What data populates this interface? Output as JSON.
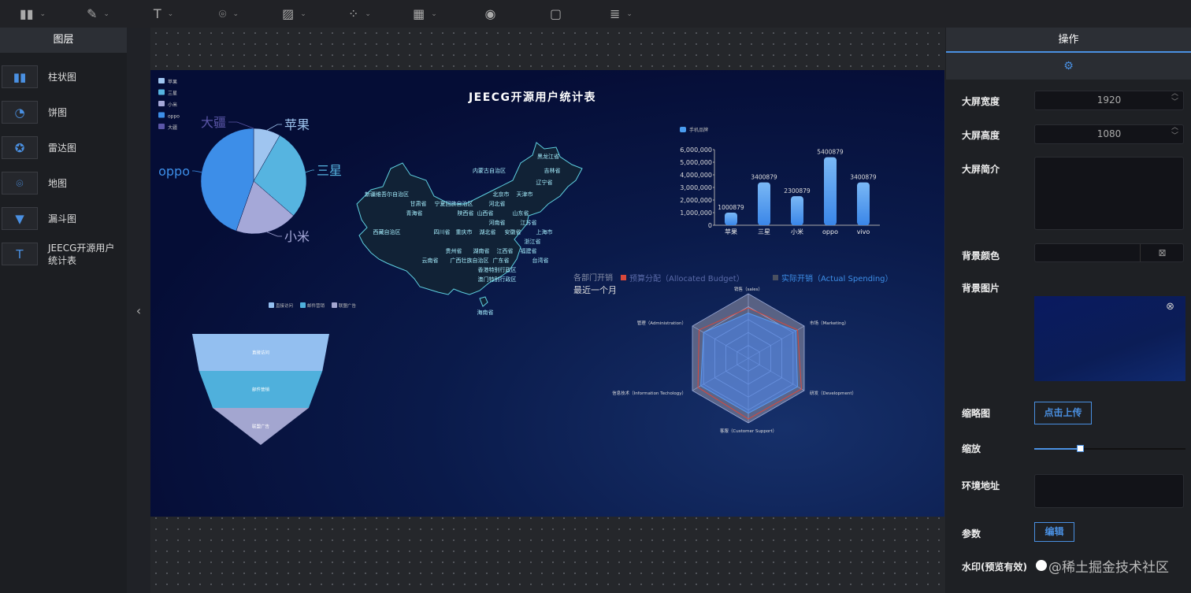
{
  "toolbar": {
    "items": [
      {
        "icon": "bar-chart-icon",
        "glyph": "▮▮",
        "dropdown": true
      },
      {
        "icon": "pen-icon",
        "glyph": "✎",
        "dropdown": true
      },
      {
        "icon": "text-icon",
        "glyph": "T",
        "dropdown": true
      },
      {
        "icon": "map-pin-icon",
        "glyph": "⌾",
        "dropdown": true
      },
      {
        "icon": "image-icon",
        "glyph": "▨",
        "dropdown": true
      },
      {
        "icon": "grid-icon",
        "glyph": "⁘",
        "dropdown": true
      },
      {
        "icon": "table-icon",
        "glyph": "▦",
        "dropdown": true
      },
      {
        "icon": "eye-icon",
        "glyph": "◉",
        "dropdown": false
      },
      {
        "icon": "save-icon",
        "glyph": "▢",
        "dropdown": false
      },
      {
        "icon": "database-icon",
        "glyph": "≣",
        "dropdown": true
      }
    ],
    "chevron": "⌄"
  },
  "layers": {
    "title": "图层",
    "items": [
      {
        "label": "柱状图",
        "icon": "bar-chart-icon",
        "glyph": "▮▮"
      },
      {
        "label": "饼图",
        "icon": "pie-chart-icon",
        "glyph": "◔"
      },
      {
        "label": "雷达图",
        "icon": "radar-icon",
        "glyph": "✪"
      },
      {
        "label": "地图",
        "icon": "map-pin-icon",
        "glyph": "⌾"
      },
      {
        "label": "漏斗图",
        "icon": "funnel-icon",
        "glyph": "▼"
      },
      {
        "label": "JEECG开源用户统计表",
        "icon": "text-icon",
        "glyph": "T"
      }
    ]
  },
  "collapse_glyph": "‹",
  "screen": {
    "title": "JEECG开源用户统计表"
  },
  "chart_data": [
    {
      "type": "pie",
      "legend": [
        "苹果",
        "三星",
        "小米",
        "oppo",
        "大疆"
      ],
      "categories": [
        "苹果",
        "三星",
        "小米",
        "oppo",
        "大疆"
      ],
      "values": [
        1000879,
        3400879,
        2300879,
        5400879,
        0
      ],
      "colors": [
        "#9fc5f0",
        "#56b4e0",
        "#a5a8d8",
        "#3d8ee8",
        "#5b56a8"
      ],
      "legend_position": "top-left"
    },
    {
      "type": "bar",
      "legend": [
        "手机品牌"
      ],
      "categories": [
        "苹果",
        "三星",
        "小米",
        "oppo",
        "vivo"
      ],
      "values": [
        1000879,
        3400879,
        2300879,
        5400879,
        3400879
      ],
      "data_labels": [
        "1000879",
        "3400879",
        "2300879",
        "5400879",
        "3400879"
      ],
      "ylim": [
        0,
        6000000
      ],
      "yticks": [
        "0",
        "1,000,000",
        "2,000,000",
        "3,000,000",
        "4,000,000",
        "5,000,000",
        "6,000,000"
      ],
      "color": "#4a9cf0"
    },
    {
      "type": "radar",
      "title": "各部门开销",
      "subtitle": "最近一个月",
      "legend": [
        "预算分配（Allocated Budget）",
        "实际开销（Actual Spending）"
      ],
      "legend_colors": [
        "#d9483b",
        "#4a5060"
      ],
      "indicators": [
        "销售（sales）",
        "市场（Marketing）",
        "研发（Development）",
        "客服（Customer Support）",
        "信息技术（Information Techology）",
        "管理（Administration）"
      ],
      "max": 100,
      "series": [
        {
          "name": "预算分配（Allocated Budget）",
          "values": [
            78,
            88,
            95,
            94,
            90,
            88
          ]
        },
        {
          "name": "实际开销（Actual Spending）",
          "values": [
            70,
            85,
            88,
            85,
            85,
            80
          ]
        }
      ]
    },
    {
      "type": "funnel",
      "legend": [
        "直接访问",
        "邮件营销",
        "联盟广告"
      ],
      "categories": [
        "直接访问",
        "邮件营销",
        "联盟广告"
      ],
      "values": [
        100,
        90,
        70
      ],
      "colors": [
        "#93bff0",
        "#4fb0dc",
        "#a3a6d0"
      ]
    },
    {
      "type": "map",
      "region": "China",
      "labels": [
        "黑龙江省",
        "内蒙古自治区",
        "吉林省",
        "辽宁省",
        "新疆维吾尔自治区",
        "北京市",
        "天津市",
        "甘肃省",
        "宁夏回族自治区",
        "山西省",
        "河北省",
        "青海省",
        "陕西省",
        "山东省",
        "河南省",
        "江苏省",
        "西藏自治区",
        "四川省",
        "重庆市",
        "湖北省",
        "安徽省",
        "上海市",
        "浙江省",
        "贵州省",
        "湖南省",
        "江西省",
        "福建省",
        "云南省",
        "广西壮族自治区",
        "广东省",
        "台湾省",
        "香港特别行政区",
        "澳门特别行政区",
        "海南省"
      ]
    }
  ],
  "ops": {
    "title": "操作",
    "tab_icon": "gear-icon",
    "width_label": "大屏宽度",
    "width": "1920",
    "height_label": "大屏高度",
    "height": "1080",
    "desc_label": "大屏简介",
    "desc": "",
    "bg_color_label": "背景颜色",
    "bg_color": "",
    "bg_image_label": "背景图片",
    "thumb_label": "缩略图",
    "upload": "点击上传",
    "zoom_label": "缩放",
    "zoom_value": 0.3,
    "env_label": "环境地址",
    "env": "",
    "params_label": "参数",
    "edit": "编辑",
    "watermark_label": "水印(预览有效)",
    "watermark_text": "@稀土掘金技术社区",
    "accent": "#4a90e2"
  }
}
